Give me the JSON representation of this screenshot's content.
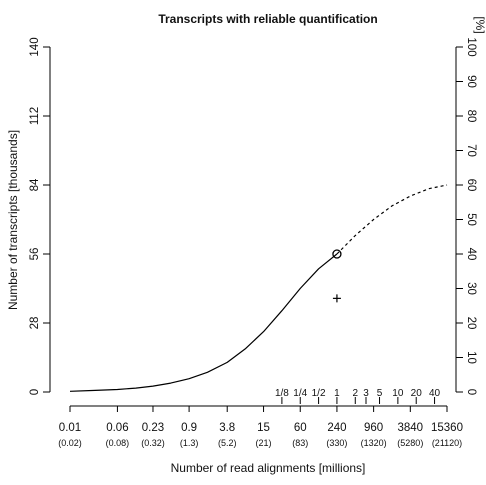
{
  "chart_data": {
    "type": "line",
    "title": "Transcripts with reliable quantification",
    "xlabel": "Number of read alignments [millions]",
    "ylabel_left": "Number of transcripts [thousands]",
    "ylabel_right": "[%]",
    "x_scale": "log",
    "x_ticks": [
      "0.01",
      "0.06",
      "0.23",
      "0.9",
      "3.8",
      "15",
      "60",
      "240",
      "960",
      "3840",
      "15360"
    ],
    "x_ticks_secondary": [
      "(0.02)",
      "(0.08)",
      "(0.32)",
      "(1.3)",
      "(5.2)",
      "(21)",
      "(83)",
      "(330)",
      "(1320)",
      "(5280)",
      "(21120)"
    ],
    "x_ticks_relative": [
      {
        "label": "1/8",
        "x": 30
      },
      {
        "label": "1/4",
        "x": 60
      },
      {
        "label": "1/2",
        "x": 120
      },
      {
        "label": "1",
        "x": 240
      },
      {
        "label": "2",
        "x": 480
      },
      {
        "label": "3",
        "x": 720
      },
      {
        "label": "5",
        "x": 1200
      },
      {
        "label": "10",
        "x": 2400
      },
      {
        "label": "20",
        "x": 4800
      },
      {
        "label": "40",
        "x": 9600
      }
    ],
    "y_ticks_left": [
      0,
      28,
      56,
      84,
      112,
      140
    ],
    "y_ticks_right": [
      0,
      10,
      20,
      30,
      40,
      50,
      60,
      70,
      80,
      90,
      100
    ],
    "ylim_left": [
      0,
      140
    ],
    "ylim_right": [
      0,
      100
    ],
    "xlim": [
      0.01,
      15360
    ],
    "series": [
      {
        "style": "solid",
        "x": [
          0.01,
          0.023,
          0.06,
          0.12,
          0.23,
          0.45,
          0.9,
          1.8,
          3.8,
          7.5,
          15,
          30,
          60,
          120,
          240
        ],
        "y": [
          0.3,
          0.6,
          1.0,
          1.6,
          2.4,
          3.6,
          5.4,
          8.0,
          12.0,
          17.5,
          24.5,
          33.0,
          42.0,
          50.0,
          56.0
        ]
      },
      {
        "style": "dashed",
        "x": [
          240,
          480,
          960,
          1920,
          3840,
          7680,
          15360
        ],
        "y": [
          56.0,
          63.5,
          70.0,
          75.5,
          79.5,
          82.5,
          84.0
        ]
      }
    ],
    "markers": [
      {
        "shape": "circle",
        "x": 240,
        "y": 56.0
      },
      {
        "shape": "plus",
        "x": 240,
        "y": 38.0
      }
    ],
    "grid": false,
    "line_color": "#000000"
  }
}
